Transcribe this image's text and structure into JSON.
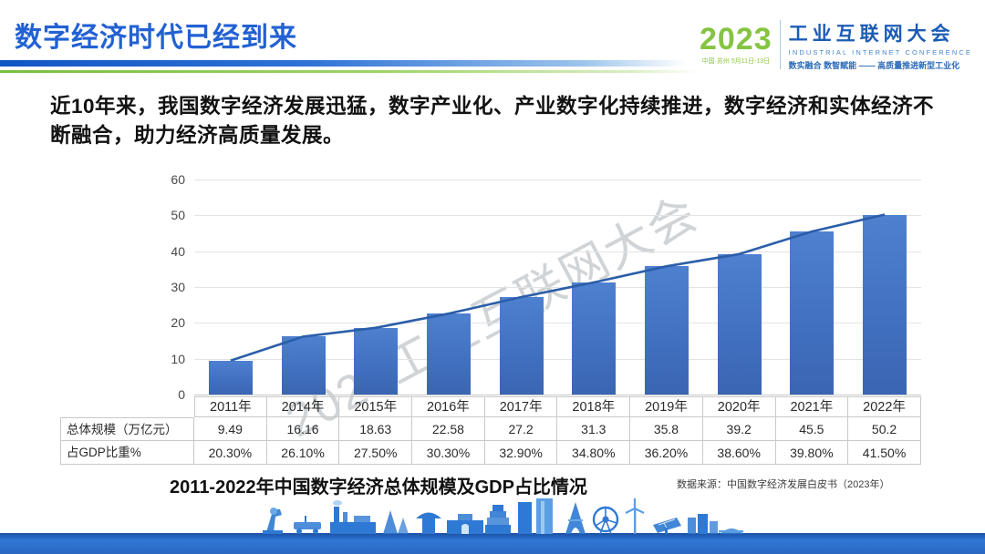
{
  "header": {
    "title": "数字经济时代已经到来",
    "logo": {
      "year": "2023",
      "venue": "中国·苏州 5月11日-13日",
      "name_cn": "工业互联网大会",
      "name_en": "INDUSTRIAL INTERNET CONFERENCE",
      "slogan": "数实融合 数智赋能 —— 高质量推进新型工业化"
    },
    "accent_blue": "#1565c8",
    "accent_green": "#8cc63f"
  },
  "body": {
    "paragraph": "近10年来，我国数字经济发展迅猛，数字产业化、产业数字化持续推进，数字经济和实体经济不断融合，助力经济高质量发展。"
  },
  "chart_data": {
    "type": "bar",
    "title": "2011-2022年中国数字经济总体规模及GDP占比情况",
    "categories": [
      "2011年",
      "2014年",
      "2015年",
      "2016年",
      "2017年",
      "2018年",
      "2019年",
      "2020年",
      "2021年",
      "2022年"
    ],
    "series": [
      {
        "name": "总体规模（万亿元）",
        "type": "bar",
        "values": [
          9.49,
          16.16,
          18.63,
          22.58,
          27.2,
          31.3,
          35.8,
          39.2,
          45.5,
          50.2
        ]
      },
      {
        "name": "趋势线",
        "type": "line",
        "values": [
          9.49,
          16.16,
          18.63,
          22.58,
          27.2,
          31.3,
          35.8,
          39.2,
          45.5,
          50.2
        ]
      }
    ],
    "gdp_share_percent": [
      20.3,
      26.1,
      27.5,
      30.3,
      32.9,
      34.8,
      36.2,
      38.6,
      39.8,
      41.5
    ],
    "yticks": [
      0,
      10,
      20,
      30,
      40,
      50,
      60
    ],
    "ylim": [
      0,
      60
    ],
    "grid": true,
    "legend": "none",
    "bar_color": "#4271c2",
    "line_color": "#2b5ea9",
    "xlabel": "",
    "ylabel": ""
  },
  "table": {
    "years": [
      "2011年",
      "2014年",
      "2015年",
      "2016年",
      "2017年",
      "2018年",
      "2019年",
      "2020年",
      "2021年",
      "2022年"
    ],
    "rows": [
      {
        "label": "总体规模（万亿元）",
        "values": [
          "9.49",
          "16.16",
          "18.63",
          "22.58",
          "27.2",
          "31.3",
          "35.8",
          "39.2",
          "45.5",
          "50.2"
        ]
      },
      {
        "label": "占GDP比重%",
        "values": [
          "20.30%",
          "26.10%",
          "27.50%",
          "30.30%",
          "32.90%",
          "34.80%",
          "36.20%",
          "38.60%",
          "39.80%",
          "41.50%"
        ]
      }
    ]
  },
  "caption": "2011-2022年中国数字经济总体规模及GDP占比情况",
  "source": "数据来源：中国数字经济发展白皮书（2023年）",
  "watermark": "2023工业互联网大会",
  "footer": {
    "band_color": "#2a67c4"
  }
}
